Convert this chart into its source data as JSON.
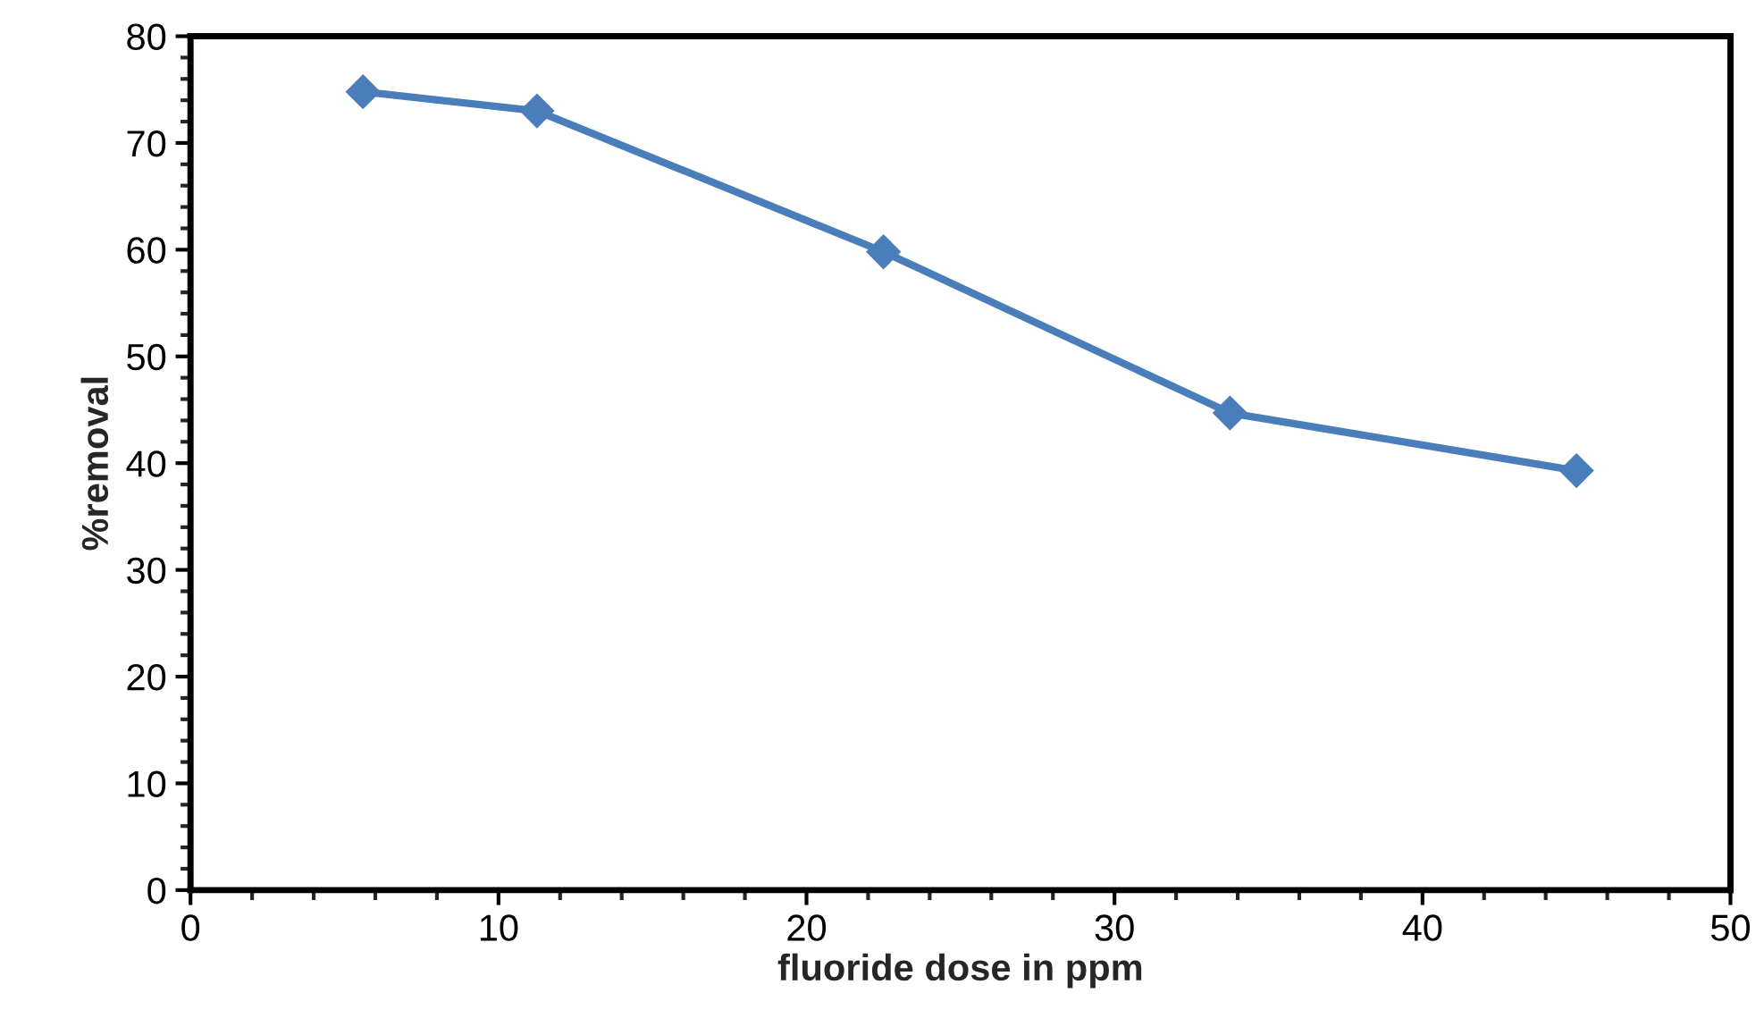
{
  "chart_data": {
    "type": "line",
    "xlabel": "fluoride dose in ppm",
    "ylabel": "%removal",
    "x": [
      5.6,
      11.25,
      22.5,
      33.75,
      45
    ],
    "series": [
      {
        "color": "#4a7ebb",
        "values": [
          74.8,
          73,
          59.8,
          44.7,
          39.3
        ]
      }
    ],
    "xlim": [
      0,
      50
    ],
    "xticks": [
      0,
      10,
      20,
      30,
      40,
      50
    ],
    "ylim": [
      0,
      80
    ],
    "yticks": [
      0,
      10,
      20,
      30,
      40,
      50,
      60,
      70,
      80
    ],
    "marker": "diamond",
    "line_style": "solid",
    "grid": false,
    "legend": false
  }
}
